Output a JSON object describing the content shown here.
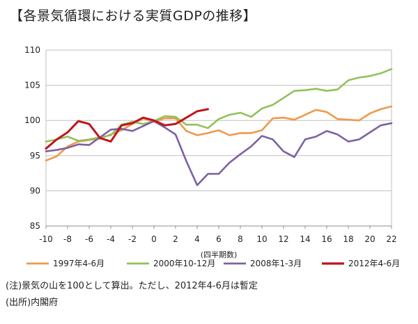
{
  "page_title": "【各景気循環における実質GDPの推移】",
  "note": "(注)景気の山を100として算出。ただし、2012年4-6月は暫定",
  "source": "(出所)内閣府",
  "colors": {
    "s1997": "#f0984a",
    "s2000": "#93c05a",
    "s2008": "#7d61a3",
    "s2012": "#c0141c"
  },
  "chart_data": {
    "type": "line",
    "title": "",
    "xlabel": "(四半期数)",
    "ylabel": "",
    "xlim": [
      -10,
      22
    ],
    "ylim": [
      85,
      110
    ],
    "x_ticks": [
      -10,
      -8,
      -6,
      -4,
      -2,
      0,
      2,
      4,
      6,
      8,
      10,
      12,
      14,
      16,
      18,
      20,
      22
    ],
    "y_ticks": [
      85,
      90,
      95,
      100,
      105,
      110
    ],
    "grid": "horizontal",
    "legend_position": "bottom",
    "series": [
      {
        "name": "1997年4-6月",
        "color_key": "s1997",
        "x": [
          -10,
          -9,
          -8,
          -7,
          -6,
          -5,
          -4,
          -3,
          -2,
          -1,
          0,
          1,
          2,
          3,
          4,
          5,
          6,
          7,
          8,
          9,
          10,
          11,
          12,
          13,
          14,
          15,
          16,
          17,
          18,
          19,
          20,
          21,
          22
        ],
        "values": [
          94.3,
          94.9,
          96.3,
          97.0,
          97.2,
          97.4,
          98.0,
          98.6,
          99.5,
          100.3,
          99.8,
          100.3,
          100.3,
          98.5,
          97.9,
          98.2,
          98.6,
          97.9,
          98.2,
          98.2,
          98.6,
          100.3,
          100.4,
          100.1,
          100.8,
          101.5,
          101.2,
          100.2,
          100.1,
          100.0,
          101.0,
          101.6,
          102.0
        ]
      },
      {
        "name": "2000年10-12月",
        "color_key": "s2000",
        "x": [
          -10,
          -9,
          -8,
          -7,
          -6,
          -5,
          -4,
          -3,
          -2,
          -1,
          0,
          1,
          2,
          3,
          4,
          5,
          6,
          7,
          8,
          9,
          10,
          11,
          12,
          13,
          14,
          15,
          16,
          17,
          18,
          19,
          20,
          21,
          22
        ],
        "values": [
          97.0,
          97.3,
          97.7,
          97.1,
          97.3,
          97.6,
          97.9,
          99.4,
          99.8,
          99.5,
          99.9,
          100.6,
          100.5,
          99.4,
          99.4,
          98.9,
          100.2,
          100.8,
          101.1,
          100.5,
          101.7,
          102.2,
          103.2,
          104.2,
          104.3,
          104.5,
          104.2,
          104.4,
          105.7,
          106.1,
          106.3,
          106.7,
          107.3
        ]
      },
      {
        "name": "2008年1-3月",
        "color_key": "s2008",
        "x": [
          -10,
          -9,
          -8,
          -7,
          -6,
          -5,
          -4,
          -3,
          -2,
          -1,
          0,
          1,
          2,
          3,
          4,
          5,
          6,
          7,
          8,
          9,
          10,
          11,
          12,
          13,
          14,
          15,
          16,
          17,
          18,
          19,
          20,
          21,
          22
        ],
        "values": [
          95.6,
          95.8,
          96.1,
          96.6,
          96.5,
          97.6,
          98.7,
          98.8,
          98.5,
          99.2,
          99.9,
          99.0,
          98.0,
          94.2,
          90.8,
          92.4,
          92.4,
          94.0,
          95.2,
          96.3,
          97.8,
          97.3,
          95.6,
          94.8,
          97.3,
          97.7,
          98.5,
          98.0,
          97.0,
          97.3,
          98.3,
          99.3,
          99.6
        ]
      },
      {
        "name": "2012年4-6月",
        "color_key": "s2012",
        "x": [
          -10,
          -9,
          -8,
          -7,
          -6,
          -5,
          -4,
          -3,
          -2,
          -1,
          0,
          1,
          2,
          3,
          4,
          5
        ],
        "values": [
          96.0,
          97.3,
          98.3,
          99.9,
          99.5,
          97.5,
          97.0,
          99.3,
          99.6,
          100.4,
          100.0,
          99.3,
          99.5,
          100.4,
          101.3,
          101.6
        ]
      }
    ]
  }
}
